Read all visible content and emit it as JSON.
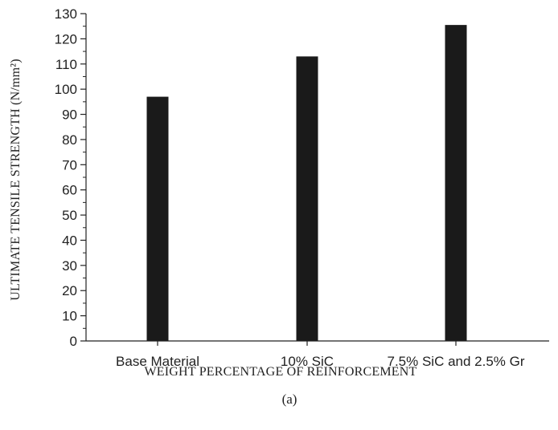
{
  "chart_data": {
    "type": "bar",
    "categories": [
      "Base Material",
      "10% SiC",
      "7.5% SiC and 2.5% Gr"
    ],
    "values": [
      97,
      113,
      125.5
    ],
    "xlabel": "WEIGHT PERCENTAGE OF REINFORCEMENT",
    "ylabel": "ULTIMATE TENSILE STRENGTH (N/mm²)",
    "ylim": [
      0,
      130
    ],
    "yticks": [
      0,
      10,
      20,
      30,
      40,
      50,
      60,
      70,
      80,
      90,
      100,
      110,
      120,
      130
    ],
    "grid": false,
    "bar_color": "#1a1a1a"
  },
  "caption": "(a)"
}
